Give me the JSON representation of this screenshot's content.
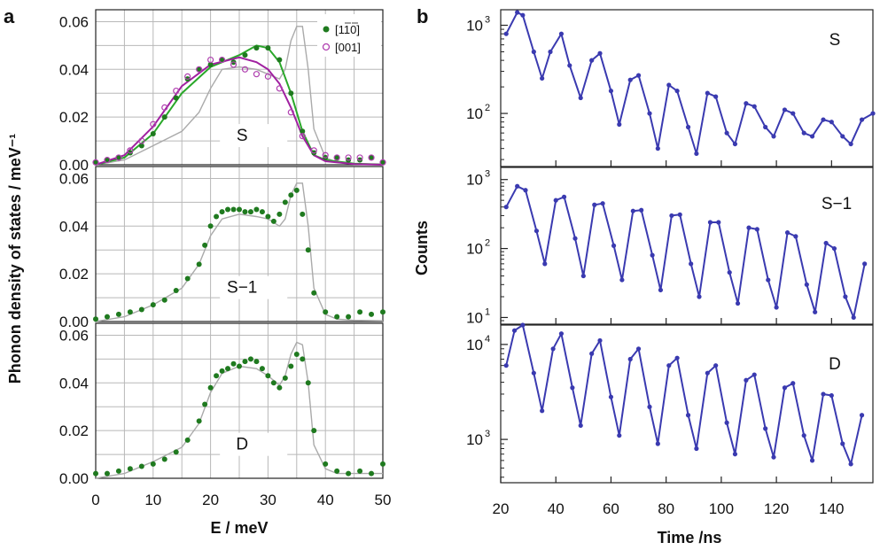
{
  "chart_data": [
    {
      "panel": "a",
      "type": "scatter",
      "xlabel": "E / meV",
      "ylabel": "Phonon density of states / meV⁻¹",
      "xlim": [
        0,
        50
      ],
      "ylim": [
        0,
        0.065
      ],
      "xticks": [
        "0",
        "10",
        "20",
        "30",
        "40",
        "50"
      ],
      "yticks": [
        "0.00",
        "0.02",
        "0.04",
        "0.06"
      ],
      "grid": true,
      "legend": {
        "position": "top-right",
        "entries": [
          "[1̅1̅0]",
          "[001]"
        ],
        "entry_labels": [
          "[110]",
          "[001]"
        ]
      },
      "subplots": [
        {
          "tag": "S",
          "series": [
            {
              "name": "[1̅1̅0]",
              "marker": "filled-circle",
              "color": "#1f7a1f",
              "x": [
                0,
                2,
                4,
                6,
                8,
                10,
                12,
                14,
                16,
                18,
                20,
                22,
                24,
                26,
                28,
                30,
                32,
                34,
                36,
                38,
                40,
                42,
                44,
                46,
                48,
                50
              ],
              "y": [
                0.001,
                0.002,
                0.003,
                0.005,
                0.008,
                0.013,
                0.02,
                0.028,
                0.036,
                0.04,
                0.042,
                0.044,
                0.043,
                0.046,
                0.049,
                0.049,
                0.044,
                0.03,
                0.014,
                0.005,
                0.003,
                0.003,
                0.002,
                0.002,
                0.003,
                0.001
              ]
            },
            {
              "name": "[001]",
              "marker": "open-circle",
              "color": "#b040b0",
              "x": [
                0,
                2,
                4,
                6,
                8,
                10,
                12,
                14,
                16,
                18,
                20,
                22,
                24,
                26,
                28,
                30,
                32,
                34,
                36,
                38,
                40,
                42,
                44,
                46,
                48,
                50
              ],
              "y": [
                0.001,
                0.002,
                0.003,
                0.006,
                0.01,
                0.017,
                0.024,
                0.031,
                0.037,
                0.04,
                0.044,
                0.044,
                0.042,
                0.04,
                0.038,
                0.037,
                0.032,
                0.022,
                0.012,
                0.006,
                0.004,
                0.003,
                0.003,
                0.003,
                0.003,
                0.001
              ]
            }
          ],
          "fit_curves": [
            {
              "color": "#2aa82a",
              "x": [
                0,
                5,
                10,
                15,
                20,
                25,
                28,
                30,
                32,
                34,
                36,
                38,
                40,
                45,
                50
              ],
              "y": [
                0,
                0.003,
                0.013,
                0.03,
                0.041,
                0.046,
                0.05,
                0.049,
                0.043,
                0.03,
                0.014,
                0.004,
                0.002,
                0.0005,
                0
              ]
            },
            {
              "color": "#a020a0",
              "x": [
                0,
                5,
                10,
                15,
                20,
                25,
                28,
                30,
                32,
                34,
                36,
                38,
                40,
                45,
                50
              ],
              "y": [
                0,
                0.004,
                0.016,
                0.033,
                0.042,
                0.045,
                0.043,
                0.04,
                0.034,
                0.024,
                0.012,
                0.004,
                0.0015,
                0.0003,
                0
              ]
            }
          ],
          "calc_curve": {
            "color": "#aaaaaa",
            "x": [
              0,
              5,
              10,
              15,
              18,
              20,
              22,
              25,
              28,
              30,
              32,
              33,
              34,
              35,
              36,
              37,
              38,
              40,
              42,
              45,
              50
            ],
            "y": [
              0,
              0.002,
              0.008,
              0.014,
              0.022,
              0.032,
              0.04,
              0.041,
              0.04,
              0.038,
              0.036,
              0.04,
              0.052,
              0.058,
              0.058,
              0.04,
              0.015,
              0.003,
              0.001,
              0.0005,
              0.0003
            ]
          }
        },
        {
          "tag": "S−1",
          "series": [
            {
              "name": "[1̅1̅0]",
              "marker": "filled-circle",
              "color": "#1f7a1f",
              "x": [
                0,
                2,
                4,
                6,
                8,
                10,
                12,
                14,
                16,
                18,
                19,
                20,
                21,
                22,
                23,
                24,
                25,
                26,
                27,
                28,
                29,
                30,
                31,
                32,
                33,
                34,
                35,
                36,
                37,
                38,
                40,
                42,
                44,
                46,
                48,
                50
              ],
              "y": [
                0.001,
                0.002,
                0.003,
                0.004,
                0.005,
                0.007,
                0.009,
                0.013,
                0.018,
                0.024,
                0.032,
                0.04,
                0.044,
                0.046,
                0.047,
                0.047,
                0.047,
                0.046,
                0.046,
                0.047,
                0.046,
                0.044,
                0.042,
                0.045,
                0.05,
                0.053,
                0.055,
                0.045,
                0.03,
                0.012,
                0.004,
                0.002,
                0.002,
                0.004,
                0.003,
                0.004
              ]
            }
          ],
          "calc_curve": {
            "color": "#aaaaaa",
            "x": [
              0,
              5,
              10,
              15,
              18,
              20,
              22,
              25,
              28,
              30,
              32,
              33,
              34,
              35,
              36,
              37,
              38,
              40,
              42,
              45,
              50
            ],
            "y": [
              0,
              0.002,
              0.007,
              0.014,
              0.024,
              0.036,
              0.043,
              0.045,
              0.044,
              0.043,
              0.04,
              0.043,
              0.053,
              0.058,
              0.058,
              0.04,
              0.014,
              0.003,
              0.001,
              0.0005,
              0.0003
            ]
          }
        },
        {
          "tag": "D",
          "series": [
            {
              "name": "[1̅1̅0]",
              "marker": "filled-circle",
              "color": "#1f7a1f",
              "x": [
                0,
                2,
                4,
                6,
                8,
                10,
                12,
                14,
                16,
                18,
                19,
                20,
                21,
                22,
                23,
                24,
                25,
                26,
                27,
                28,
                29,
                30,
                31,
                32,
                33,
                34,
                35,
                36,
                37,
                38,
                40,
                42,
                44,
                46,
                48,
                50
              ],
              "y": [
                0.002,
                0.002,
                0.003,
                0.004,
                0.005,
                0.006,
                0.008,
                0.011,
                0.016,
                0.024,
                0.031,
                0.038,
                0.043,
                0.045,
                0.046,
                0.048,
                0.047,
                0.049,
                0.05,
                0.049,
                0.046,
                0.043,
                0.04,
                0.038,
                0.042,
                0.047,
                0.052,
                0.05,
                0.04,
                0.02,
                0.006,
                0.003,
                0.002,
                0.003,
                0.002,
                0.006
              ]
            }
          ],
          "calc_curve": {
            "color": "#aaaaaa",
            "x": [
              0,
              5,
              10,
              15,
              18,
              20,
              22,
              25,
              28,
              30,
              32,
              33,
              34,
              35,
              36,
              37,
              38,
              40,
              42,
              45,
              50
            ],
            "y": [
              0,
              0.002,
              0.007,
              0.013,
              0.023,
              0.036,
              0.044,
              0.047,
              0.046,
              0.043,
              0.039,
              0.043,
              0.052,
              0.057,
              0.056,
              0.04,
              0.014,
              0.004,
              0.002,
              0.002,
              0.002
            ]
          }
        }
      ]
    },
    {
      "panel": "b",
      "type": "line",
      "xlabel": "Time /ns",
      "ylabel": "Counts",
      "xlim": [
        20,
        155
      ],
      "xticks": [
        "20",
        "40",
        "60",
        "80",
        "100",
        "120",
        "140"
      ],
      "yscale": "log",
      "color": "#3a3ab0",
      "subplots": [
        {
          "tag": "S",
          "ylim": [
            25,
            1500
          ],
          "ytick_values": [
            100,
            1000
          ],
          "yticks": [
            "10",
            "10"
          ],
          "ytick_exp": [
            "2",
            "3"
          ],
          "x": [
            22,
            26,
            28,
            32,
            35,
            38,
            42,
            45,
            49,
            53,
            56,
            60,
            63,
            67,
            70,
            74,
            77,
            81,
            84,
            88,
            91,
            95,
            98,
            102,
            105,
            109,
            112,
            116,
            119,
            123,
            126,
            130,
            133,
            137,
            140,
            144,
            147,
            151,
            155
          ],
          "y": [
            800,
            1400,
            1300,
            500,
            250,
            500,
            800,
            350,
            150,
            400,
            480,
            180,
            75,
            240,
            270,
            100,
            40,
            210,
            180,
            70,
            35,
            170,
            155,
            60,
            45,
            130,
            120,
            70,
            55,
            110,
            100,
            60,
            55,
            85,
            80,
            55,
            45,
            85,
            100
          ]
        },
        {
          "tag": "S−1",
          "ylim": [
            8,
            1500
          ],
          "ytick_values": [
            10,
            100,
            1000
          ],
          "yticks": [
            "10",
            "10",
            "10"
          ],
          "ytick_exp": [
            "1",
            "2",
            "3"
          ],
          "x": [
            22,
            26,
            29,
            33,
            36,
            40,
            43,
            47,
            50,
            54,
            57,
            61,
            64,
            68,
            71,
            75,
            78,
            82,
            85,
            89,
            92,
            96,
            99,
            103,
            106,
            110,
            113,
            117,
            120,
            124,
            127,
            131,
            134,
            138,
            141,
            145,
            148,
            152
          ],
          "y": [
            400,
            800,
            700,
            180,
            60,
            500,
            560,
            140,
            40,
            430,
            450,
            110,
            35,
            350,
            360,
            80,
            25,
            300,
            310,
            60,
            20,
            240,
            240,
            45,
            16,
            200,
            190,
            35,
            14,
            170,
            150,
            30,
            12,
            120,
            100,
            20,
            10,
            60
          ]
        },
        {
          "tag": "D",
          "ylim": [
            350,
            16000
          ],
          "ytick_values": [
            1000,
            10000
          ],
          "yticks": [
            "10",
            "10"
          ],
          "ytick_exp": [
            "3",
            "4"
          ],
          "x": [
            22,
            25,
            28,
            32,
            35,
            39,
            42,
            46,
            49,
            53,
            56,
            60,
            63,
            67,
            70,
            74,
            77,
            81,
            84,
            88,
            91,
            95,
            98,
            102,
            105,
            109,
            112,
            116,
            119,
            123,
            126,
            130,
            133,
            137,
            140,
            144,
            147,
            151
          ],
          "y": [
            6000,
            14000,
            16000,
            5000,
            2000,
            9000,
            13000,
            3500,
            1400,
            8000,
            11000,
            2800,
            1100,
            7000,
            9000,
            2200,
            900,
            6000,
            7200,
            1800,
            800,
            5000,
            6000,
            1500,
            700,
            4200,
            4800,
            1300,
            650,
            3500,
            3900,
            1100,
            600,
            3000,
            2900,
            900,
            550,
            1800
          ]
        }
      ]
    }
  ]
}
